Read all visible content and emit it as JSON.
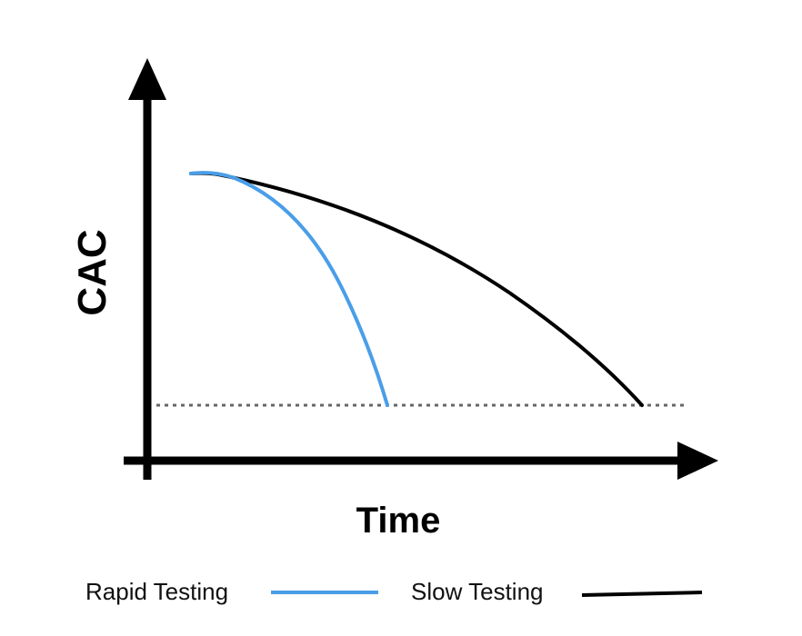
{
  "chart_data": {
    "type": "line",
    "title": "",
    "xlabel": "Time",
    "ylabel": "CAC",
    "legend_position": "bottom",
    "threshold_line": {
      "style": "dotted",
      "color": "#666666"
    },
    "series": [
      {
        "name": "Rapid Testing",
        "color": "#4a9ee8",
        "shape": "steep-decline"
      },
      {
        "name": "Slow Testing",
        "color": "#000000",
        "shape": "gradual-decline"
      }
    ]
  }
}
